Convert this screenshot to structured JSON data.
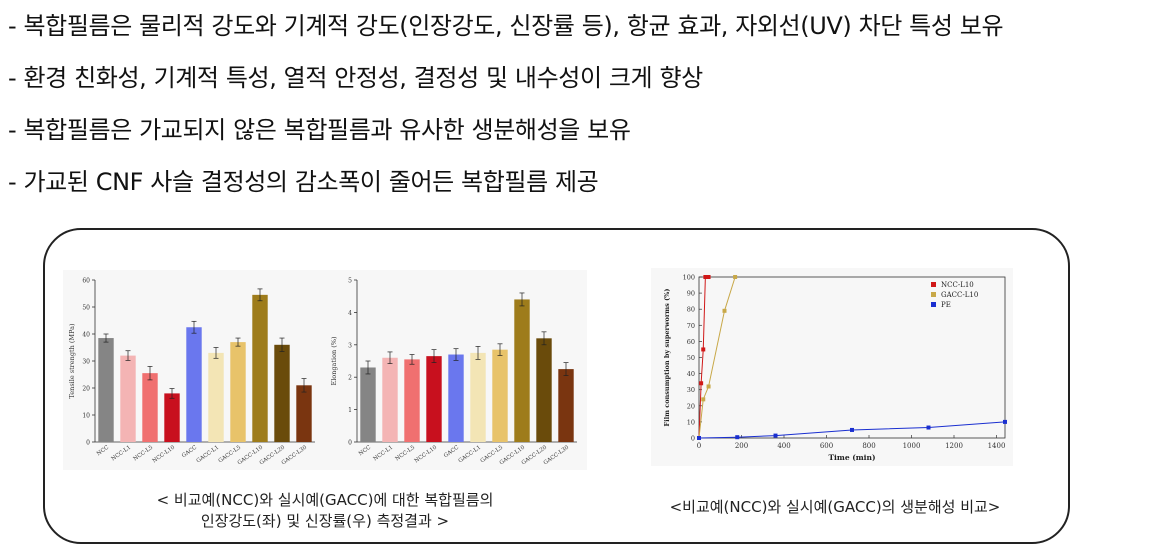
{
  "bullets": [
    "- 복합필름은 물리적 강도와 기계적 강도(인장강도, 신장률 등), 항균 효과, 자외선(UV) 차단 특성 보유",
    "- 환경 친화성, 기계적 특성, 열적 안정성, 결정성 및 내수성이 크게 향상",
    "- 복합필름은 가교되지 않은 복합필름과 유사한 생분해성을 보유",
    "- 가교된 CNF 사슬 결정성의 감소폭이 줄어든 복합필름 제공"
  ],
  "captions": {
    "left_line1": "< 비교예(NCC)와 실시예(GACC)에 대한 복합필름의",
    "left_line2": "인장강도(좌) 및 신장률(우) 측정결과 >",
    "right": "<비교예(NCC)와 실시예(GACC)의 생분해성 비교>"
  },
  "chart_data": [
    {
      "type": "bar",
      "ylabel": "Tensile strength (MPa)",
      "ylim": [
        0,
        60
      ],
      "yticks": [
        "0",
        "10",
        "20",
        "30",
        "40",
        "50",
        "60"
      ],
      "categories": [
        "NCC",
        "NCC-L1",
        "NCC-L5",
        "NCC-L10",
        "GACC",
        "GACC-L1",
        "GACC-L5",
        "GACC-L10",
        "GACC-L20",
        "GACC-L30"
      ],
      "values": [
        38.5,
        32,
        25.5,
        18,
        42.5,
        33,
        37,
        54.5,
        36,
        21
      ],
      "errors": [
        1.5,
        1.8,
        2.5,
        1.8,
        2.2,
        2.0,
        1.5,
        2.2,
        2.5,
        2.5
      ],
      "colors": [
        "#858585",
        "#f4b4b4",
        "#f07070",
        "#c8101e",
        "#6a77ee",
        "#f3e5b5",
        "#e8c36a",
        "#9e7c1b",
        "#6a4b0b",
        "#7a3510"
      ]
    },
    {
      "type": "bar",
      "ylabel": "Elongation (%)",
      "ylim": [
        0,
        5
      ],
      "yticks": [
        "0",
        "1",
        "2",
        "3",
        "4",
        "5"
      ],
      "categories": [
        "NCC",
        "NCC-L1",
        "NCC-L5",
        "NCC-L10",
        "GACC",
        "GACC-L1",
        "GACC-L5",
        "GACC-L10",
        "GACC-L20",
        "GACC-L30"
      ],
      "values": [
        2.3,
        2.6,
        2.55,
        2.65,
        2.7,
        2.75,
        2.85,
        4.4,
        3.2,
        2.25
      ],
      "errors": [
        0.2,
        0.18,
        0.15,
        0.2,
        0.18,
        0.2,
        0.18,
        0.2,
        0.2,
        0.2
      ],
      "colors": [
        "#858585",
        "#f4b4b4",
        "#f07070",
        "#c8101e",
        "#6a77ee",
        "#f3e5b5",
        "#e8c36a",
        "#9e7c1b",
        "#6a4b0b",
        "#7a3510"
      ]
    },
    {
      "type": "line",
      "xlabel": "Time (min)",
      "ylabel": "Film consumption by superworms (%)",
      "xlim": [
        0,
        1440
      ],
      "ylim": [
        0,
        100
      ],
      "xticks": [
        "0",
        "200",
        "400",
        "600",
        "800",
        "1000",
        "1200",
        "1400"
      ],
      "yticks": [
        "0",
        "10",
        "20",
        "30",
        "40",
        "50",
        "60",
        "70",
        "80",
        "90",
        "100"
      ],
      "legend": "top-right",
      "series": [
        {
          "name": "NCC-L10",
          "color": "#d01818",
          "marker": "square",
          "x": [
            0,
            10,
            20,
            30,
            45
          ],
          "y": [
            0,
            34,
            55,
            100,
            100
          ]
        },
        {
          "name": "GACC-L10",
          "color": "#c8a848",
          "marker": "square",
          "x": [
            0,
            20,
            45,
            120,
            170
          ],
          "y": [
            0,
            24,
            32,
            79,
            100
          ]
        },
        {
          "name": "PE",
          "color": "#1a2fd0",
          "marker": "square",
          "x": [
            0,
            180,
            360,
            720,
            1080,
            1440
          ],
          "y": [
            0,
            0.5,
            1.5,
            5,
            6.5,
            10
          ]
        }
      ]
    }
  ]
}
